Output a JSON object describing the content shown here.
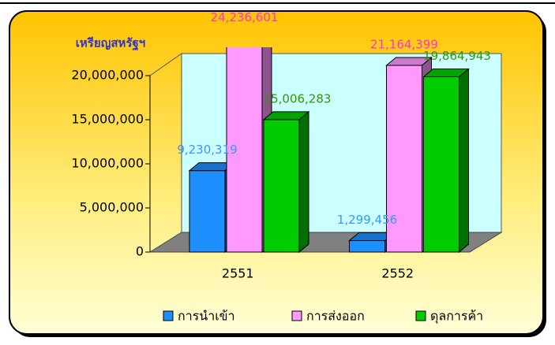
{
  "chart_data": {
    "type": "bar3d",
    "y_label": "เหรียญสหรัฐฯ",
    "categories": [
      "2551",
      "2552"
    ],
    "series": [
      {
        "name": "การนำเข้า",
        "color": "#1e8fff",
        "values": [
          9230319,
          1299456
        ],
        "value_labels": [
          "9,230,319",
          "1,299,456"
        ]
      },
      {
        "name": "การส่งออก",
        "color": "#ff99ff",
        "values": [
          24236601,
          21164399
        ],
        "value_labels": [
          "24,236,601",
          "21,164,399"
        ]
      },
      {
        "name": "ดุลการค้า",
        "color": "#00cc00",
        "values": [
          15006283,
          19864943
        ],
        "value_labels": [
          "15,006,283",
          "19,864,943"
        ]
      }
    ],
    "label_colors": [
      "#3399ff",
      "#ff33cc",
      "#339900"
    ],
    "ylim": [
      0,
      20000000
    ],
    "yticks": [
      0,
      {
        "value": 5000000,
        "label": "5,000,000"
      },
      {
        "value": 10000000,
        "label": "10,000,000"
      },
      {
        "value": 15000000,
        "label": "15,000,000"
      },
      {
        "value": 20000000,
        "label": "20,000,000"
      }
    ],
    "grid": false,
    "legend": "bottom"
  }
}
